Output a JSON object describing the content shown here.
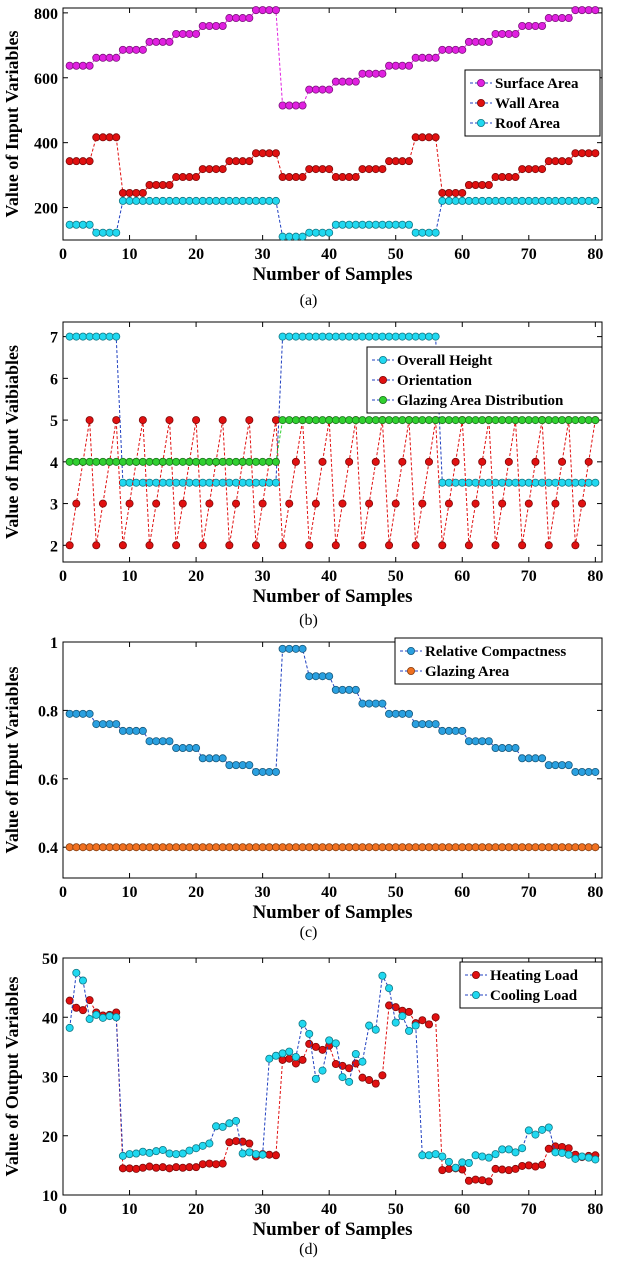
{
  "chart_data": [
    {
      "type": "scatter",
      "caption": "(a)",
      "xlabel": "Number of Samples",
      "ylabel": "Value of Input Variables",
      "xlim": [
        0,
        81
      ],
      "ylim": [
        100,
        815
      ],
      "xticks": [
        0,
        10,
        20,
        30,
        40,
        50,
        60,
        70,
        80
      ],
      "yticks": [
        200,
        400,
        600,
        800
      ],
      "legend_position": "center-right",
      "series": [
        {
          "name": "Surface Area",
          "color": "#e020e0",
          "values": [
            637,
            637,
            637,
            637,
            661.5,
            661.5,
            661.5,
            661.5,
            686,
            686,
            686,
            686,
            710.5,
            710.5,
            710.5,
            710.5,
            735,
            735,
            735,
            735,
            759.5,
            759.5,
            759.5,
            759.5,
            784,
            784,
            784,
            784,
            808.5,
            808.5,
            808.5,
            808.5,
            514.5,
            514.5,
            514.5,
            514.5,
            563.5,
            563.5,
            563.5,
            563.5,
            588,
            588,
            588,
            588,
            612.5,
            612.5,
            612.5,
            612.5,
            637,
            637,
            637,
            637,
            661.5,
            661.5,
            661.5,
            661.5,
            686,
            686,
            686,
            686,
            710.5,
            710.5,
            710.5,
            710.5,
            735,
            735,
            735,
            735,
            759.5,
            759.5,
            759.5,
            759.5,
            784,
            784,
            784,
            784,
            808.5,
            808.5,
            808.5,
            808.5
          ]
        },
        {
          "name": "Wall Area",
          "color": "#e01010",
          "values": [
            343,
            343,
            343,
            343,
            416.5,
            416.5,
            416.5,
            416.5,
            245,
            245,
            245,
            245,
            269.5,
            269.5,
            269.5,
            269.5,
            294,
            294,
            294,
            294,
            318.5,
            318.5,
            318.5,
            318.5,
            343,
            343,
            343,
            343,
            367.5,
            367.5,
            367.5,
            367.5,
            294,
            294,
            294,
            294,
            318.5,
            318.5,
            318.5,
            318.5,
            294,
            294,
            294,
            294,
            318.5,
            318.5,
            318.5,
            318.5,
            343,
            343,
            343,
            343,
            416.5,
            416.5,
            416.5,
            416.5,
            245,
            245,
            245,
            245,
            269.5,
            269.5,
            269.5,
            269.5,
            294,
            294,
            294,
            294,
            318.5,
            318.5,
            318.5,
            318.5,
            343,
            343,
            343,
            343,
            367.5,
            367.5,
            367.5,
            367.5
          ]
        },
        {
          "name": "Roof Area",
          "color": "#20d8f0",
          "values": [
            147,
            147,
            147,
            147,
            122.5,
            122.5,
            122.5,
            122.5,
            220.5,
            220.5,
            220.5,
            220.5,
            220.5,
            220.5,
            220.5,
            220.5,
            220.5,
            220.5,
            220.5,
            220.5,
            220.5,
            220.5,
            220.5,
            220.5,
            220.5,
            220.5,
            220.5,
            220.5,
            220.5,
            220.5,
            220.5,
            220.5,
            110.25,
            110.25,
            110.25,
            110.25,
            122.5,
            122.5,
            122.5,
            122.5,
            147,
            147,
            147,
            147,
            147,
            147,
            147,
            147,
            147,
            147,
            147,
            147,
            122.5,
            122.5,
            122.5,
            122.5,
            220.5,
            220.5,
            220.5,
            220.5,
            220.5,
            220.5,
            220.5,
            220.5,
            220.5,
            220.5,
            220.5,
            220.5,
            220.5,
            220.5,
            220.5,
            220.5,
            220.5,
            220.5,
            220.5,
            220.5,
            220.5,
            220.5,
            220.5,
            220.5
          ]
        }
      ]
    },
    {
      "type": "scatter",
      "caption": "(b)",
      "xlabel": "Number of Samples",
      "ylabel": "Value of Input Vaibiables",
      "xlim": [
        0,
        81
      ],
      "ylim": [
        1.6,
        7.35
      ],
      "xticks": [
        0,
        10,
        20,
        30,
        40,
        50,
        60,
        70,
        80
      ],
      "yticks": [
        2,
        3,
        4,
        5,
        6,
        7
      ],
      "legend_position": "top-right",
      "series": [
        {
          "name": "Overall Height",
          "color": "#20d8f0",
          "values": [
            7,
            7,
            7,
            7,
            7,
            7,
            7,
            7,
            3.5,
            3.5,
            3.5,
            3.5,
            3.5,
            3.5,
            3.5,
            3.5,
            3.5,
            3.5,
            3.5,
            3.5,
            3.5,
            3.5,
            3.5,
            3.5,
            3.5,
            3.5,
            3.5,
            3.5,
            3.5,
            3.5,
            3.5,
            3.5,
            7,
            7,
            7,
            7,
            7,
            7,
            7,
            7,
            7,
            7,
            7,
            7,
            7,
            7,
            7,
            7,
            7,
            7,
            7,
            7,
            7,
            7,
            7,
            7,
            3.5,
            3.5,
            3.5,
            3.5,
            3.5,
            3.5,
            3.5,
            3.5,
            3.5,
            3.5,
            3.5,
            3.5,
            3.5,
            3.5,
            3.5,
            3.5,
            3.5,
            3.5,
            3.5,
            3.5,
            3.5,
            3.5,
            3.5,
            3.5
          ]
        },
        {
          "name": "Orientation",
          "color": "#e01010",
          "values": [
            2,
            3,
            4,
            5,
            2,
            3,
            4,
            5,
            2,
            3,
            4,
            5,
            2,
            3,
            4,
            5,
            2,
            3,
            4,
            5,
            2,
            3,
            4,
            5,
            2,
            3,
            4,
            5,
            2,
            3,
            4,
            5,
            2,
            3,
            4,
            5,
            2,
            3,
            4,
            5,
            2,
            3,
            4,
            5,
            2,
            3,
            4,
            5,
            2,
            3,
            4,
            5,
            2,
            3,
            4,
            5,
            2,
            3,
            4,
            5,
            2,
            3,
            4,
            5,
            2,
            3,
            4,
            5,
            2,
            3,
            4,
            5,
            2,
            3,
            4,
            5,
            2,
            3,
            4,
            5
          ]
        },
        {
          "name": "Glazing Area Distribution",
          "color": "#30d030",
          "values": [
            4,
            4,
            4,
            4,
            4,
            4,
            4,
            4,
            4,
            4,
            4,
            4,
            4,
            4,
            4,
            4,
            4,
            4,
            4,
            4,
            4,
            4,
            4,
            4,
            4,
            4,
            4,
            4,
            4,
            4,
            4,
            4,
            5,
            5,
            5,
            5,
            5,
            5,
            5,
            5,
            5,
            5,
            5,
            5,
            5,
            5,
            5,
            5,
            5,
            5,
            5,
            5,
            5,
            5,
            5,
            5,
            5,
            5,
            5,
            5,
            5,
            5,
            5,
            5,
            5,
            5,
            5,
            5,
            5,
            5,
            5,
            5,
            5,
            5,
            5,
            5,
            5,
            5,
            5,
            5
          ]
        }
      ]
    },
    {
      "type": "scatter",
      "caption": "(c)",
      "xlabel": "Number of Samples",
      "ylabel": "Value of Input Variables",
      "xlim": [
        0,
        81
      ],
      "ylim": [
        0.31,
        1.0
      ],
      "xticks": [
        0,
        10,
        20,
        30,
        40,
        50,
        60,
        70,
        80
      ],
      "yticks": [
        0.4,
        0.6,
        0.8,
        1
      ],
      "legend_position": "top-right",
      "series": [
        {
          "name": "Relative Compactness",
          "color": "#2aa0e0",
          "values": [
            0.79,
            0.79,
            0.79,
            0.79,
            0.76,
            0.76,
            0.76,
            0.76,
            0.74,
            0.74,
            0.74,
            0.74,
            0.71,
            0.71,
            0.71,
            0.71,
            0.69,
            0.69,
            0.69,
            0.69,
            0.66,
            0.66,
            0.66,
            0.66,
            0.64,
            0.64,
            0.64,
            0.64,
            0.62,
            0.62,
            0.62,
            0.62,
            0.98,
            0.98,
            0.98,
            0.98,
            0.9,
            0.9,
            0.9,
            0.9,
            0.86,
            0.86,
            0.86,
            0.86,
            0.82,
            0.82,
            0.82,
            0.82,
            0.79,
            0.79,
            0.79,
            0.79,
            0.76,
            0.76,
            0.76,
            0.76,
            0.74,
            0.74,
            0.74,
            0.74,
            0.71,
            0.71,
            0.71,
            0.71,
            0.69,
            0.69,
            0.69,
            0.69,
            0.66,
            0.66,
            0.66,
            0.66,
            0.64,
            0.64,
            0.64,
            0.64,
            0.62,
            0.62,
            0.62,
            0.62
          ]
        },
        {
          "name": "Glazing Area",
          "color": "#f07020",
          "values": [
            0.4,
            0.4,
            0.4,
            0.4,
            0.4,
            0.4,
            0.4,
            0.4,
            0.4,
            0.4,
            0.4,
            0.4,
            0.4,
            0.4,
            0.4,
            0.4,
            0.4,
            0.4,
            0.4,
            0.4,
            0.4,
            0.4,
            0.4,
            0.4,
            0.4,
            0.4,
            0.4,
            0.4,
            0.4,
            0.4,
            0.4,
            0.4,
            0.4,
            0.4,
            0.4,
            0.4,
            0.4,
            0.4,
            0.4,
            0.4,
            0.4,
            0.4,
            0.4,
            0.4,
            0.4,
            0.4,
            0.4,
            0.4,
            0.4,
            0.4,
            0.4,
            0.4,
            0.4,
            0.4,
            0.4,
            0.4,
            0.4,
            0.4,
            0.4,
            0.4,
            0.4,
            0.4,
            0.4,
            0.4,
            0.4,
            0.4,
            0.4,
            0.4,
            0.4,
            0.4,
            0.4,
            0.4,
            0.4,
            0.4,
            0.4,
            0.4,
            0.4,
            0.4,
            0.4,
            0.4
          ]
        }
      ]
    },
    {
      "type": "scatter",
      "caption": "(d)",
      "xlabel": "Number of Samples",
      "ylabel": "Value of Output Variables",
      "xlim": [
        0,
        81
      ],
      "ylim": [
        10,
        50
      ],
      "xticks": [
        0,
        10,
        20,
        30,
        40,
        50,
        60,
        70,
        80
      ],
      "yticks": [
        10,
        20,
        30,
        40,
        50
      ],
      "legend_position": "top-right",
      "series": [
        {
          "name": "Heating Load",
          "color": "#e01010",
          "values": [
            42.8,
            41.6,
            41.2,
            42.9,
            40.8,
            40.3,
            40.4,
            40.8,
            14.5,
            14.5,
            14.4,
            14.6,
            14.8,
            14.6,
            14.7,
            14.5,
            14.7,
            14.6,
            14.7,
            14.7,
            15.2,
            15.3,
            15.2,
            15.3,
            18.9,
            19.1,
            19.0,
            18.7,
            16.5,
            16.9,
            16.8,
            16.7,
            32.8,
            33.0,
            32.2,
            32.8,
            35.5,
            35.0,
            34.5,
            35.2,
            32.1,
            31.8,
            31.4,
            32.2,
            29.8,
            29.4,
            28.8,
            30.2,
            42.0,
            41.7,
            41.1,
            40.9,
            39.0,
            39.5,
            38.8,
            40.0,
            14.2,
            14.4,
            14.5,
            14.3,
            12.4,
            12.6,
            12.5,
            12.3,
            14.4,
            14.3,
            14.2,
            14.4,
            14.9,
            15.0,
            14.8,
            15.1,
            17.8,
            18.2,
            18.1,
            17.9,
            16.8,
            16.4,
            16.6,
            16.7
          ]
        },
        {
          "name": "Cooling Load",
          "color": "#20d8f0",
          "values": [
            38.2,
            47.5,
            46.2,
            39.7,
            40.4,
            39.9,
            40.2,
            40.0,
            16.6,
            16.9,
            17.0,
            17.3,
            17.1,
            17.4,
            17.6,
            17.0,
            16.9,
            17.0,
            17.5,
            17.9,
            18.3,
            18.7,
            21.6,
            21.5,
            22.1,
            22.5,
            17.0,
            17.2,
            16.9,
            16.8,
            33.0,
            33.5,
            33.9,
            34.2,
            33.3,
            38.9,
            37.2,
            29.6,
            31.0,
            36.1,
            35.6,
            29.9,
            29.1,
            33.8,
            32.5,
            38.6,
            37.9,
            47.0,
            44.9,
            39.1,
            40.2,
            37.7,
            38.6,
            16.7,
            16.7,
            16.9,
            16.5,
            15.6,
            14.6,
            15.5,
            15.4,
            16.7,
            16.5,
            16.3,
            16.9,
            17.7,
            17.7,
            17.2,
            17.9,
            20.9,
            20.2,
            21.0,
            21.4,
            17.2,
            17.1,
            16.8,
            16.1,
            16.5,
            16.3,
            16.0
          ]
        }
      ]
    }
  ]
}
